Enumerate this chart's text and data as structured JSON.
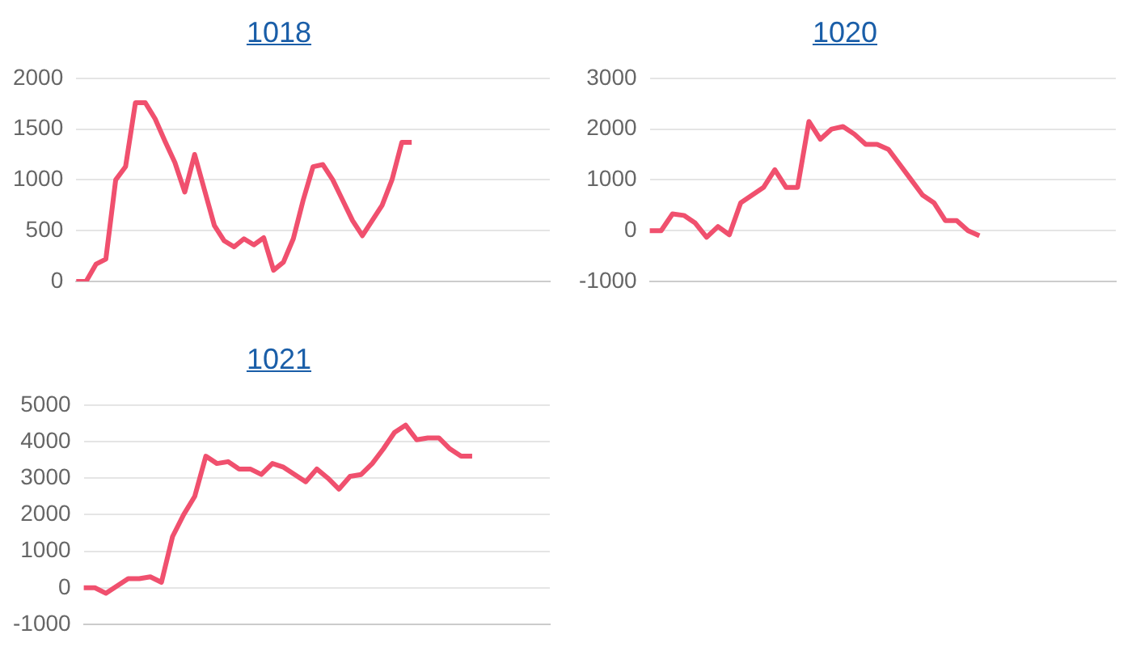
{
  "chart_data": [
    {
      "type": "line",
      "title": "1018",
      "categories": [
        null,
        null,
        null,
        null,
        null,
        null,
        null,
        null,
        null,
        null,
        null,
        null,
        null,
        null,
        null,
        null,
        null,
        null,
        null,
        null,
        null,
        null,
        null,
        null,
        null,
        null,
        null,
        null,
        null,
        null,
        null,
        null,
        null,
        null,
        null,
        null,
        null,
        null,
        null,
        null,
        null,
        null,
        null,
        null,
        null,
        null,
        null,
        null,
        null
      ],
      "series": [
        {
          "color": "#f0506e",
          "values": [
            0,
            0,
            170,
            220,
            1000,
            1130,
            1760,
            1760,
            1600,
            1380,
            1170,
            880,
            1250,
            900,
            550,
            400,
            340,
            420,
            360,
            430,
            110,
            190,
            420,
            800,
            1130,
            1150,
            1000,
            800,
            600,
            450,
            600,
            750,
            1000,
            1370,
            1370,
            null,
            null,
            null,
            null,
            null,
            null,
            null,
            null,
            null,
            null,
            null,
            null,
            null,
            null
          ]
        }
      ],
      "ylim": [
        0,
        2000
      ],
      "yticks": [
        0,
        500,
        1000,
        1500,
        2000
      ],
      "grid": "y",
      "tick_labels": "y",
      "marker": "none",
      "line_style": "solid"
    },
    {
      "type": "line",
      "title": "1020",
      "categories": [
        null,
        null,
        null,
        null,
        null,
        null,
        null,
        null,
        null,
        null,
        null,
        null,
        null,
        null,
        null,
        null,
        null,
        null,
        null,
        null,
        null,
        null,
        null,
        null,
        null,
        null,
        null,
        null,
        null,
        null,
        null,
        null,
        null,
        null,
        null,
        null,
        null,
        null,
        null,
        null,
        null,
        null
      ],
      "series": [
        {
          "color": "#f0506e",
          "values": [
            0,
            0,
            330,
            300,
            150,
            -130,
            80,
            -80,
            550,
            700,
            850,
            1200,
            850,
            850,
            2150,
            1800,
            2000,
            2050,
            1900,
            1700,
            1700,
            1600,
            1300,
            1000,
            700,
            550,
            200,
            200,
            0,
            -100,
            null,
            null,
            null,
            null,
            null,
            null,
            null,
            null,
            null,
            null,
            null,
            null
          ]
        }
      ],
      "ylim": [
        -1000,
        3000
      ],
      "yticks": [
        -1000,
        0,
        1000,
        2000,
        3000
      ],
      "grid": "y",
      "tick_labels": "y",
      "marker": "none",
      "line_style": "solid"
    },
    {
      "type": "line",
      "title": "1021",
      "categories": [
        null,
        null,
        null,
        null,
        null,
        null,
        null,
        null,
        null,
        null,
        null,
        null,
        null,
        null,
        null,
        null,
        null,
        null,
        null,
        null,
        null,
        null,
        null,
        null,
        null,
        null,
        null,
        null,
        null,
        null,
        null,
        null,
        null,
        null,
        null,
        null,
        null,
        null,
        null,
        null,
        null,
        null,
        null
      ],
      "series": [
        {
          "color": "#f0506e",
          "values": [
            0,
            0,
            -150,
            50,
            250,
            250,
            300,
            150,
            1400,
            2000,
            2500,
            3600,
            3400,
            3450,
            3250,
            3250,
            3100,
            3400,
            3300,
            3100,
            2900,
            3250,
            3000,
            2700,
            3050,
            3100,
            3400,
            3800,
            4250,
            4450,
            4050,
            4100,
            4100,
            3800,
            3600,
            3600,
            null,
            null,
            null,
            null,
            null,
            null,
            null
          ]
        }
      ],
      "ylim": [
        -1000,
        5000
      ],
      "yticks": [
        -1000,
        0,
        1000,
        2000,
        3000,
        4000,
        5000
      ],
      "grid": "y",
      "tick_labels": "y",
      "marker": "none",
      "line_style": "solid"
    }
  ]
}
